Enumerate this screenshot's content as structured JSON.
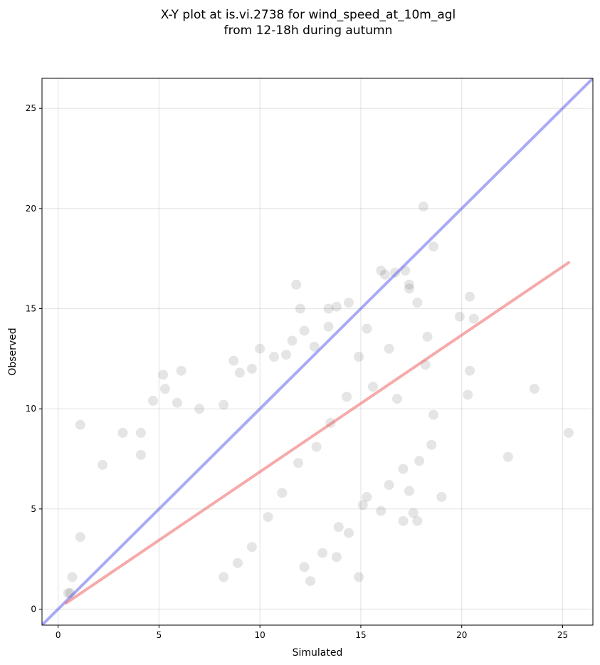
{
  "chart_data": {
    "type": "scatter",
    "title": "X-Y plot at is.vi.2738 for wind_speed_at_10m_agl",
    "subtitle": "from 12-18h during autumn",
    "xlabel": "Simulated",
    "ylabel": "Observed",
    "xlim": [
      -0.8,
      26.5
    ],
    "ylim": [
      -0.8,
      26.5
    ],
    "xticks": [
      0,
      5,
      10,
      15,
      20,
      25
    ],
    "yticks": [
      0,
      5,
      10,
      15,
      20,
      25
    ],
    "grid": true,
    "reference_lines": [
      {
        "kind": "identity",
        "color": "#5555ee",
        "x": [
          -0.8,
          26.5
        ],
        "y": [
          -0.8,
          26.5
        ]
      },
      {
        "kind": "fit",
        "color": "#ee5555",
        "x": [
          0.4,
          25.3
        ],
        "y": [
          0.3,
          17.3
        ]
      }
    ],
    "point_color": "#000000",
    "point_opacity": 0.1,
    "points": [
      [
        1.1,
        9.2
      ],
      [
        4.7,
        10.4
      ],
      [
        5.2,
        11.7
      ],
      [
        5.3,
        11.0
      ],
      [
        6.1,
        11.9
      ],
      [
        5.9,
        10.3
      ],
      [
        7.0,
        10.0
      ],
      [
        8.2,
        10.2
      ],
      [
        8.7,
        12.4
      ],
      [
        9.0,
        11.8
      ],
      [
        9.6,
        12.0
      ],
      [
        10.0,
        13.0
      ],
      [
        10.7,
        12.6
      ],
      [
        11.3,
        12.7
      ],
      [
        11.6,
        13.4
      ],
      [
        12.2,
        13.9
      ],
      [
        12.7,
        13.1
      ],
      [
        13.4,
        14.1
      ],
      [
        13.4,
        15.0
      ],
      [
        13.8,
        15.1
      ],
      [
        14.4,
        15.3
      ],
      [
        12.0,
        15.0
      ],
      [
        11.8,
        16.2
      ],
      [
        16.0,
        16.9
      ],
      [
        16.2,
        16.7
      ],
      [
        16.7,
        16.8
      ],
      [
        17.2,
        16.9
      ],
      [
        17.4,
        16.2
      ],
      [
        17.4,
        16.0
      ],
      [
        17.8,
        15.3
      ],
      [
        18.2,
        12.2
      ],
      [
        18.3,
        13.6
      ],
      [
        18.6,
        18.1
      ],
      [
        18.1,
        20.1
      ],
      [
        19.9,
        14.6
      ],
      [
        20.4,
        15.6
      ],
      [
        20.6,
        14.5
      ],
      [
        20.4,
        11.9
      ],
      [
        20.3,
        10.7
      ],
      [
        22.3,
        7.6
      ],
      [
        23.6,
        11.0
      ],
      [
        25.3,
        8.8
      ],
      [
        19.0,
        5.6
      ],
      [
        18.6,
        9.7
      ],
      [
        18.5,
        8.2
      ],
      [
        17.9,
        7.4
      ],
      [
        17.8,
        4.4
      ],
      [
        17.4,
        5.9
      ],
      [
        17.6,
        4.8
      ],
      [
        17.1,
        4.4
      ],
      [
        17.1,
        7.0
      ],
      [
        16.4,
        6.2
      ],
      [
        16.0,
        4.9
      ],
      [
        15.3,
        5.6
      ],
      [
        15.1,
        5.2
      ],
      [
        14.9,
        1.6
      ],
      [
        12.5,
        1.4
      ],
      [
        12.2,
        2.1
      ],
      [
        13.1,
        2.8
      ],
      [
        13.8,
        2.6
      ],
      [
        14.4,
        3.8
      ],
      [
        13.9,
        4.1
      ],
      [
        3.2,
        8.8
      ],
      [
        4.1,
        8.8
      ],
      [
        4.1,
        7.7
      ],
      [
        2.2,
        7.2
      ],
      [
        1.1,
        3.6
      ],
      [
        0.7,
        1.6
      ],
      [
        0.5,
        0.8
      ],
      [
        0.6,
        0.8
      ],
      [
        16.8,
        10.5
      ],
      [
        15.6,
        11.1
      ],
      [
        16.4,
        13.0
      ],
      [
        15.3,
        14.0
      ],
      [
        14.9,
        12.6
      ],
      [
        14.3,
        10.6
      ],
      [
        13.5,
        9.3
      ],
      [
        12.8,
        8.1
      ],
      [
        11.9,
        7.3
      ],
      [
        11.1,
        5.8
      ],
      [
        10.4,
        4.6
      ],
      [
        9.6,
        3.1
      ],
      [
        8.9,
        2.3
      ],
      [
        8.2,
        1.6
      ]
    ]
  }
}
